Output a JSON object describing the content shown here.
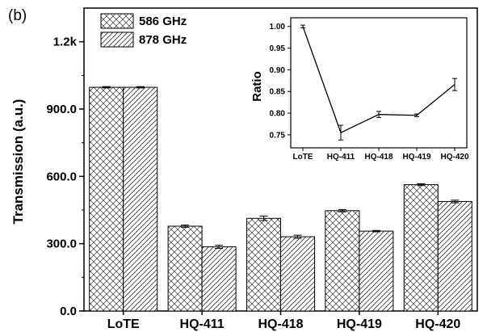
{
  "panel_label": "(b)",
  "chart_data": [
    {
      "type": "bar",
      "categories": [
        "LoTE",
        "HQ-411",
        "HQ-418",
        "HQ-419",
        "HQ-420"
      ],
      "series": [
        {
          "name": "586 GHz",
          "pattern": "crosshatch",
          "values": [
            997,
            378,
            413,
            447,
            563
          ],
          "errors": [
            3,
            5,
            10,
            5,
            4
          ]
        },
        {
          "name": "878 GHz",
          "pattern": "diagonal",
          "values": [
            997,
            286,
            331,
            356,
            488
          ],
          "errors": [
            3,
            7,
            7,
            3,
            6
          ]
        }
      ],
      "xlabel": "",
      "ylabel": "Transmission (a.u.)",
      "ylim": [
        0,
        1350
      ],
      "yticks": [
        0,
        300,
        600,
        900,
        1200
      ],
      "ytick_labels": [
        "0.0",
        "300.0",
        "600.0",
        "900.0",
        "1.2k"
      ],
      "legend": "top-left",
      "grid": false
    },
    {
      "type": "line",
      "inset": true,
      "categories": [
        "LoTE",
        "HQ-411",
        "HQ-418",
        "HQ-419",
        "HQ-420"
      ],
      "values": [
        1.0,
        0.755,
        0.797,
        0.795,
        0.866
      ],
      "errors": [
        0.003,
        0.017,
        0.007,
        0.003,
        0.014
      ],
      "ylabel": "Ratio",
      "ylim": [
        0.72,
        1.02
      ],
      "yticks": [
        0.75,
        0.8,
        0.85,
        0.9,
        0.95,
        1.0
      ],
      "ytick_labels": [
        "0.75",
        "0.80",
        "0.85",
        "0.90",
        "0.95",
        "1.00"
      ],
      "grid": false
    }
  ]
}
